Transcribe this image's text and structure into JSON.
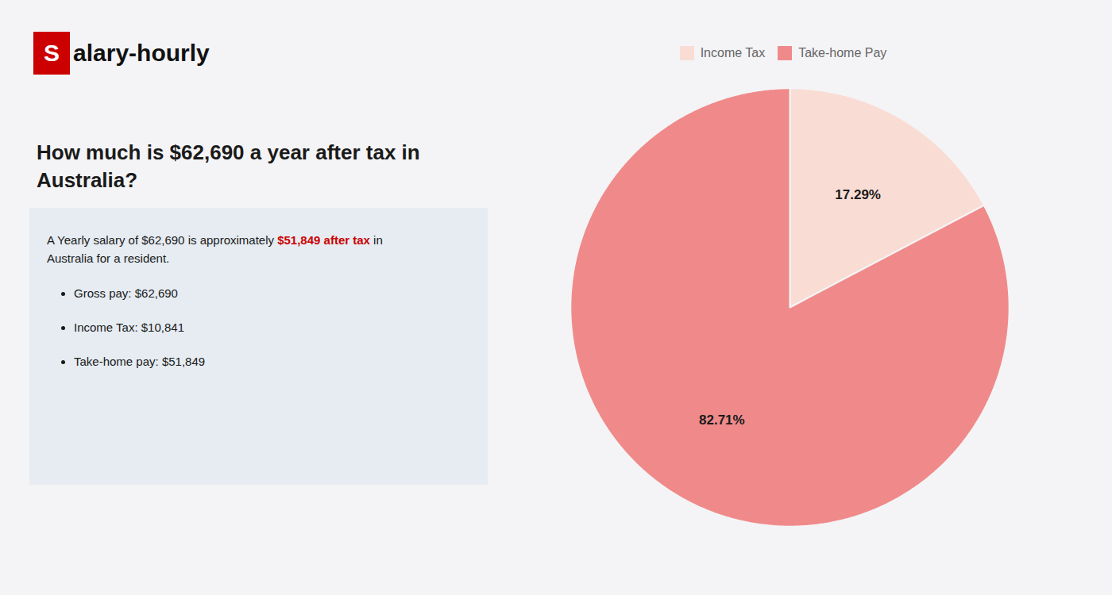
{
  "chart_data": {
    "type": "pie",
    "title": "How much is $62,690 a year after tax in\nAustralia?",
    "categories": [
      "Income Tax",
      "Take-home Pay"
    ],
    "values": [
      17.29,
      82.71
    ],
    "value_labels": [
      "17.29%",
      "82.71%"
    ],
    "colors": [
      "#f9ddd5",
      "#f08a8a"
    ],
    "data_labels": true,
    "legend": "top",
    "annotations": [
      "S",
      "alary-hourly",
      "A Yearly salary of $62,690 is approximately ",
      "$51,849 after tax",
      " in",
      "Australia for a resident.",
      "Gross pay: $62,690",
      "Income Tax: $10,841",
      "Take-home pay: $51,849"
    ]
  }
}
